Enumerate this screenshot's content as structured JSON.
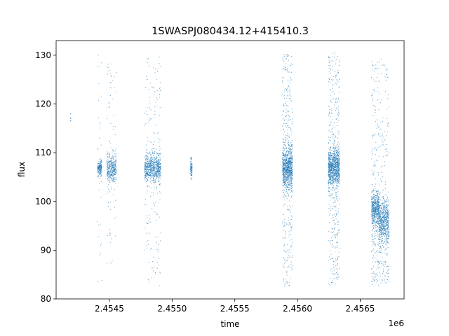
{
  "chart_data": {
    "type": "scatter",
    "title": "1SWASPJ080434.12+415410.3",
    "xlabel": "time",
    "ylabel": "flux",
    "x_offset_label": "1e6",
    "xlim": [
      2454075,
      2456850
    ],
    "ylim": [
      80,
      133
    ],
    "grid": false,
    "legend": "none",
    "x_ticks": [
      2454500,
      2455000,
      2455500,
      2456000,
      2456500
    ],
    "x_tick_labels": [
      "2.4545",
      "2.4550",
      "2.4555",
      "2.4560",
      "2.4565"
    ],
    "y_ticks": [
      80,
      90,
      100,
      110,
      120,
      130
    ],
    "y_tick_labels": [
      "80",
      "90",
      "100",
      "110",
      "120",
      "130"
    ],
    "marker_color": "#1f77b4",
    "observing_groups": [
      {
        "start": 2454190,
        "end": 2454192,
        "center": 117,
        "spread": 0.5,
        "outlier_low": 116.5,
        "outlier_high": 118,
        "n_core": 8,
        "n_outliers": 0
      },
      {
        "start": 2454405,
        "end": 2454440,
        "center": 106.8,
        "spread": 0.8,
        "outlier_low": 83,
        "outlier_high": 130.5,
        "n_core": 180,
        "n_outliers": 30
      },
      {
        "start": 2454480,
        "end": 2454555,
        "center": 106.8,
        "spread": 1.5,
        "outlier_low": 87,
        "outlier_high": 128.5,
        "n_core": 360,
        "n_outliers": 80
      },
      {
        "start": 2454780,
        "end": 2454910,
        "center": 106.8,
        "spread": 1.5,
        "outlier_low": 82.5,
        "outlier_high": 130,
        "n_core": 700,
        "n_outliers": 180
      },
      {
        "start": 2455145,
        "end": 2455160,
        "center": 106.8,
        "spread": 1.0,
        "outlier_low": 104.5,
        "outlier_high": 109,
        "n_core": 100,
        "n_outliers": 0
      },
      {
        "start": 2455880,
        "end": 2455960,
        "center": 106.8,
        "spread": 2.2,
        "outlier_low": 82.5,
        "outlier_high": 130.5,
        "n_core": 800,
        "n_outliers": 380
      },
      {
        "start": 2456245,
        "end": 2456335,
        "center": 106.8,
        "spread": 2.0,
        "outlier_low": 82.5,
        "outlier_high": 130.5,
        "n_core": 900,
        "n_outliers": 400
      },
      {
        "start": 2456590,
        "end": 2456650,
        "center": 98.5,
        "spread": 1.7,
        "outlier_low": 82.5,
        "outlier_high": 129,
        "n_core": 500,
        "n_outliers": 220
      },
      {
        "start": 2456650,
        "end": 2456730,
        "center": 96,
        "spread": 2.3,
        "outlier_low": 83,
        "outlier_high": 129.5,
        "n_core": 600,
        "n_outliers": 200
      }
    ]
  }
}
